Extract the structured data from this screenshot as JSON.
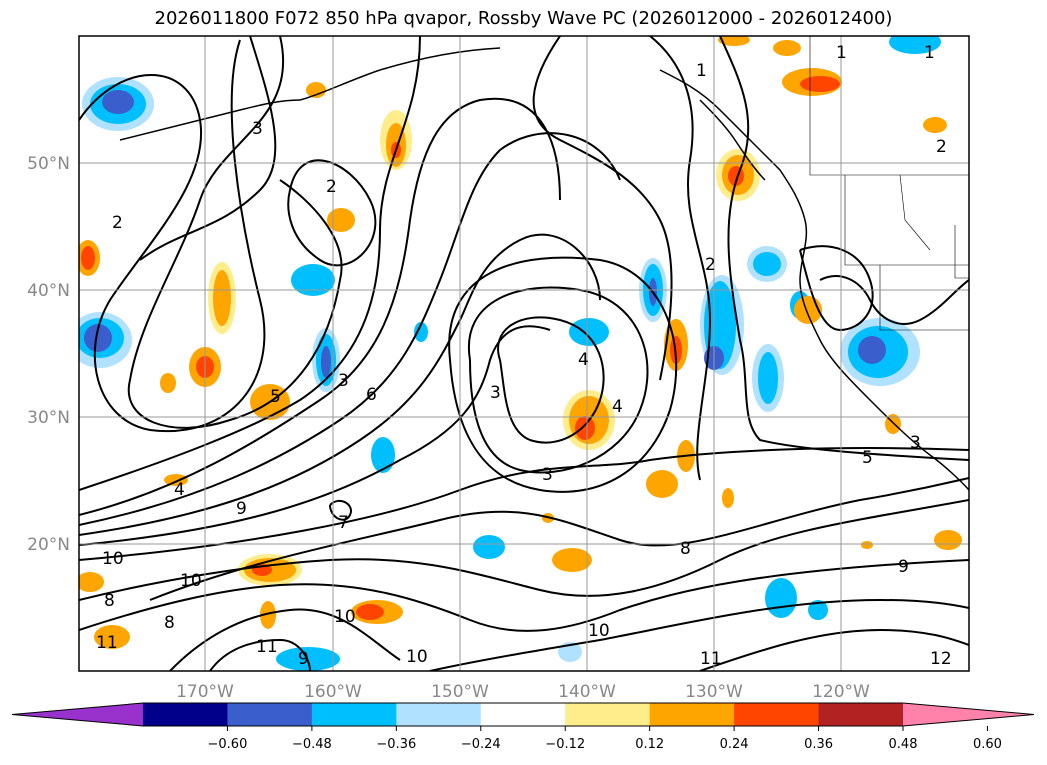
{
  "title": "2026011800 F072 850 hPa qvapor, Rossby Wave PC (2026012000 - 2026012400)",
  "lat_labels": [
    "50°N",
    "40°N",
    "30°N",
    "20°N"
  ],
  "lon_labels": [
    "170°W",
    "160°W",
    "150°W",
    "140°W",
    "130°W",
    "120°W"
  ],
  "contour_labels": [
    "1",
    "1",
    "1",
    "2",
    "2",
    "2",
    "2",
    "3",
    "3",
    "3",
    "3",
    "3",
    "4",
    "4",
    "4",
    "5",
    "5",
    "6",
    "7",
    "8",
    "8",
    "8",
    "9",
    "9",
    "9",
    "10",
    "10",
    "10",
    "10",
    "10",
    "11",
    "11",
    "11",
    "12"
  ],
  "colorbar": {
    "ticks": [
      "−0.60",
      "−0.48",
      "−0.36",
      "−0.24",
      "−0.12",
      "0.12",
      "0.24",
      "0.36",
      "0.48",
      "0.60"
    ],
    "colors": [
      "#9932cc",
      "#00008b",
      "#3a5fcd",
      "#00bfff",
      "#b0e2ff",
      "#ffffff",
      "#ffec8b",
      "#ffa500",
      "#ff4500",
      "#b22222",
      "#ff82ab"
    ]
  },
  "colors": {
    "neg_light": "#b0e2ff",
    "neg_mid": "#00bfff",
    "neg_strong": "#3a5fcd",
    "pos_light": "#ffec8b",
    "pos_mid": "#ffa500",
    "pos_strong": "#ff4500"
  }
}
